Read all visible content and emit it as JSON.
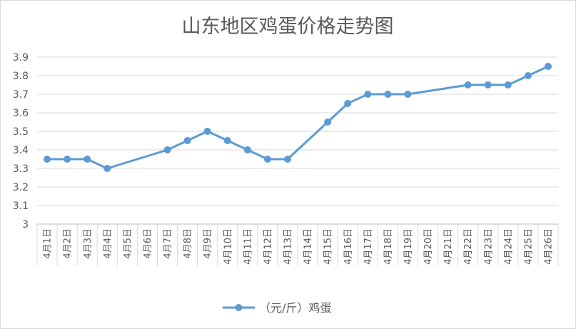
{
  "chart_data": {
    "type": "line",
    "title": "山东地区鸡蛋价格走势图",
    "xlabel": "",
    "ylabel": "",
    "categories": [
      "4月1日",
      "4月2日",
      "4月3日",
      "4月4日",
      "4月5日",
      "4月6日",
      "4月7日",
      "4月8日",
      "4月9日",
      "4月10日",
      "4月11日",
      "4月12日",
      "4月13日",
      "4月14日",
      "4月15日",
      "4月16日",
      "4月17日",
      "4月18日",
      "4月19日",
      "4月20日",
      "4月21日",
      "4月22日",
      "4月23日",
      "4月24日",
      "4月25日",
      "4月26日"
    ],
    "series": [
      {
        "name": "（元/斤）鸡蛋",
        "color": "#5B9BD5",
        "values": [
          3.35,
          3.35,
          3.35,
          3.3,
          null,
          null,
          3.4,
          3.45,
          3.5,
          3.45,
          3.4,
          3.35,
          3.35,
          null,
          3.55,
          3.65,
          3.7,
          3.7,
          3.7,
          null,
          null,
          3.75,
          3.75,
          3.75,
          3.8,
          3.85
        ]
      }
    ],
    "ylim": [
      3,
      3.9
    ],
    "yticks": [
      "3",
      "3.1",
      "3.2",
      "3.3",
      "3.4",
      "3.5",
      "3.6",
      "3.7",
      "3.8",
      "3.9"
    ],
    "grid": true,
    "legend": "bottom"
  }
}
